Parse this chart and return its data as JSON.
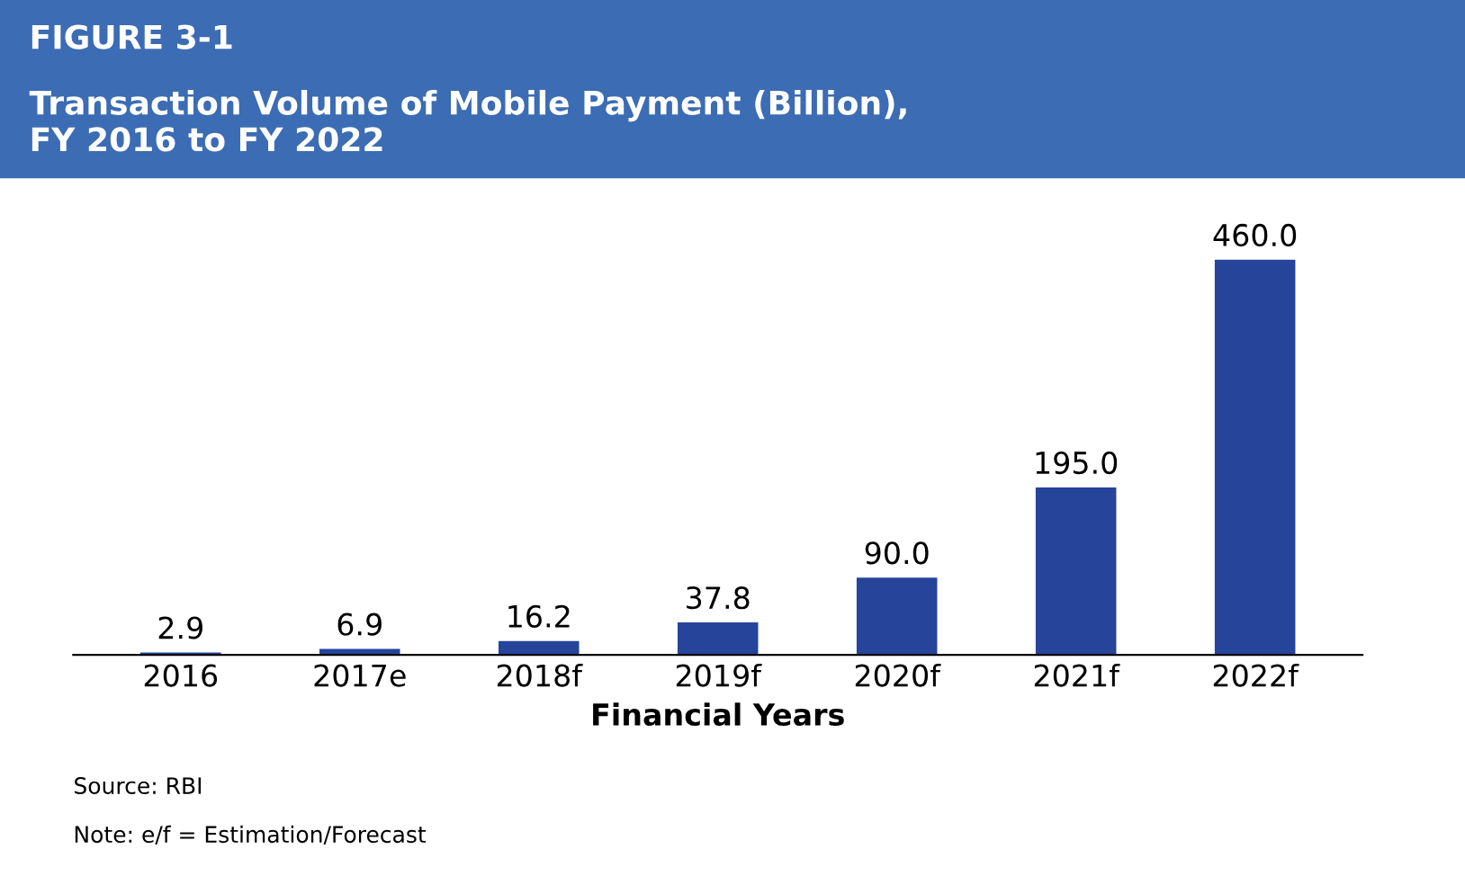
{
  "chart_data": {
    "type": "bar",
    "title": "FIGURE 3-1",
    "subtitle": "Transaction Volume of Mobile Payment (Billion),\nFY 2016 to FY 2022",
    "xlabel": "Financial Years",
    "categories": [
      "2016",
      "2017e",
      "2018f",
      "2019f",
      "2020f",
      "2021f",
      "2022f"
    ],
    "values": [
      2.9,
      6.9,
      16.2,
      37.8,
      90.0,
      195.0,
      460.0
    ],
    "value_labels": [
      "2.9",
      "6.9",
      "16.2",
      "37.8",
      "90.0",
      "195.0",
      "460.0"
    ],
    "color": "#25449a",
    "annotations": [
      "Source: RBI",
      "Note: e/f = Estimation/Forecast"
    ]
  }
}
